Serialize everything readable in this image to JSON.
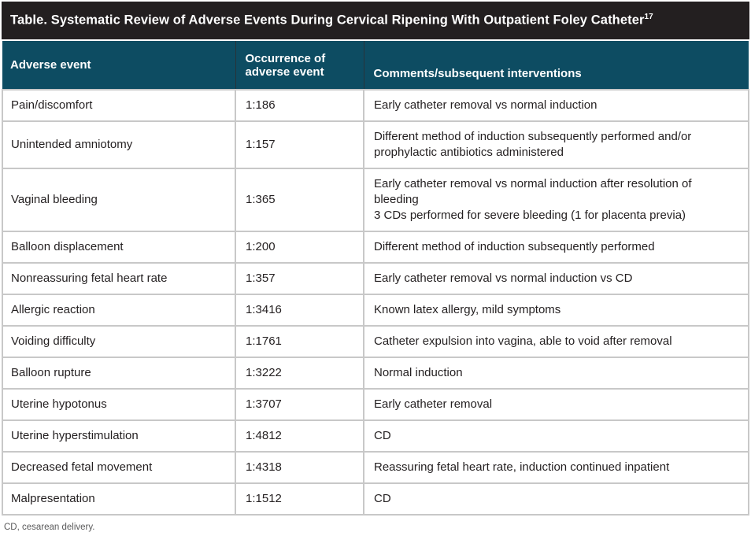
{
  "title": {
    "text": "Table. Systematic Review of Adverse Events During Cervical Ripening With Outpatient Foley Catheter",
    "superscript": "17"
  },
  "table": {
    "columns": {
      "event": "Adverse event",
      "occurrence": "Occurrence of adverse event",
      "comments": "Comments/subsequent interventions"
    },
    "rows": [
      {
        "event": "Pain/discomfort",
        "occurrence": "1:186",
        "comments": [
          "Early catheter removal vs normal induction"
        ]
      },
      {
        "event": "Unintended amniotomy",
        "occurrence": "1:157",
        "comments": [
          "Different method of induction subsequently performed and/or prophylactic antibiotics administered"
        ]
      },
      {
        "event": "Vaginal bleeding",
        "occurrence": "1:365",
        "comments": [
          "Early catheter removal vs normal induction after resolution of bleeding",
          "3 CDs performed for severe bleeding (1 for placenta previa)"
        ]
      },
      {
        "event": "Balloon displacement",
        "occurrence": "1:200",
        "comments": [
          "Different method of induction subsequently performed"
        ]
      },
      {
        "event": "Nonreassuring fetal heart rate",
        "occurrence": "1:357",
        "comments": [
          "Early catheter removal vs normal induction vs CD"
        ]
      },
      {
        "event": "Allergic reaction",
        "occurrence": "1:3416",
        "comments": [
          "Known latex allergy, mild symptoms"
        ]
      },
      {
        "event": "Voiding difficulty",
        "occurrence": "1:1761",
        "comments": [
          "Catheter expulsion into vagina, able to void after removal"
        ]
      },
      {
        "event": "Balloon rupture",
        "occurrence": "1:3222",
        "comments": [
          "Normal induction"
        ]
      },
      {
        "event": "Uterine hypotonus",
        "occurrence": "1:3707",
        "comments": [
          "Early catheter removal"
        ]
      },
      {
        "event": "Uterine hyperstimulation",
        "occurrence": "1:4812",
        "comments": [
          "CD"
        ]
      },
      {
        "event": "Decreased fetal movement",
        "occurrence": "1:4318",
        "comments": [
          "Reassuring fetal heart rate, induction continued inpatient"
        ]
      },
      {
        "event": "Malpresentation",
        "occurrence": "1:1512",
        "comments": [
          "CD"
        ]
      }
    ]
  },
  "footnote": "CD, cesarean delivery.",
  "colors": {
    "title_bar": "#231f20",
    "header_background": "#0d4c62",
    "header_text": "#ffffff",
    "body_text": "#231f20",
    "border": "#c8c8c8",
    "footnote_text": "#5a5a5b"
  }
}
